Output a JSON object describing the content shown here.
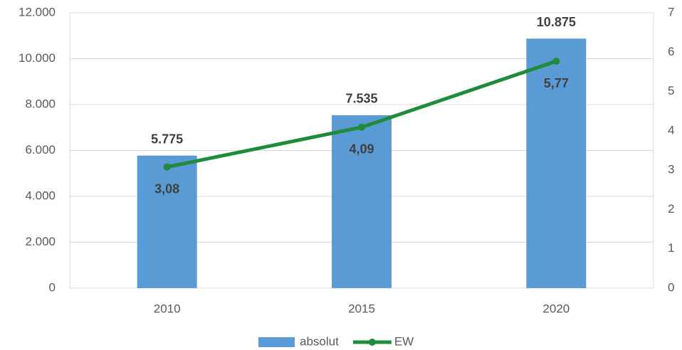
{
  "chart_data": {
    "type": "combo",
    "categories": [
      "2010",
      "2015",
      "2020"
    ],
    "series": [
      {
        "name": "absolut",
        "type": "bar",
        "color": "#5b9bd5",
        "values": [
          5775,
          7535,
          10875
        ],
        "value_labels": [
          "5.775",
          "7.535",
          "10.875"
        ]
      },
      {
        "name": "EW",
        "type": "line",
        "axis": "y2",
        "color": "#1e8c3a",
        "values": [
          3.08,
          4.09,
          5.77
        ],
        "value_labels": [
          "3,08",
          "4,09",
          "5,77"
        ]
      }
    ],
    "ylim": [
      0,
      12000
    ],
    "yticks": [
      0,
      {
        "value": 2000,
        "label": "2.000"
      },
      {
        "value": 4000,
        "label": "4.000"
      },
      {
        "value": 6000,
        "label": "6.000"
      },
      {
        "value": 8000,
        "label": "8.000"
      },
      {
        "value": 10000,
        "label": "10.000"
      },
      {
        "value": 12000,
        "label": "12.000"
      }
    ],
    "y2lim": [
      0,
      7
    ],
    "y2ticks": [
      0,
      1,
      2,
      3,
      4,
      5,
      6,
      7
    ],
    "grid": true,
    "legend": "bottom"
  }
}
